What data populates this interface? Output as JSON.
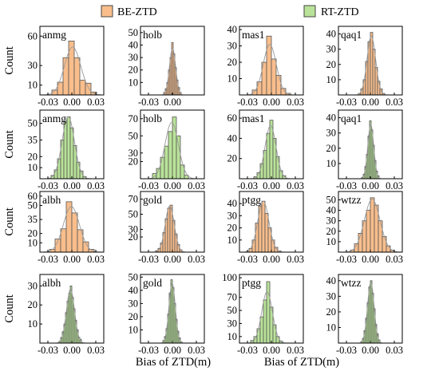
{
  "legend": [
    {
      "label": "BE-ZTD",
      "color": "#f9be8c"
    },
    {
      "label": "RT-ZTD",
      "color": "#b9e398"
    }
  ],
  "colors": {
    "be": "#f9be8c",
    "rt": "#b9e398",
    "edge": "#555555",
    "curve": "#9a9a9a"
  },
  "axes": {
    "ylabel": "Count",
    "xlabel": "Bias of ZTD(m)"
  },
  "chart_data": [
    {
      "type": "bar",
      "series": "BE-ZTD",
      "site": "anmg",
      "xlim": [
        -0.04,
        0.04
      ],
      "xticks": [
        -0.03,
        0.0,
        0.03
      ],
      "xticklabels": [
        "-0.03",
        "0.00",
        "0.03"
      ],
      "ylim": [
        0,
        70
      ],
      "yticks": [
        10,
        30,
        60
      ],
      "bin_start": -0.025,
      "bin_width": 0.007,
      "values": [
        5,
        13,
        38,
        55,
        38,
        15,
        12,
        3
      ]
    },
    {
      "type": "bar",
      "series": "BE-ZTD",
      "site": "holb",
      "xlim": [
        -0.04,
        0.04
      ],
      "xticks": [
        -0.03,
        0.0
      ],
      "xticklabels": [
        "-0.03",
        "0.00"
      ],
      "ylim": [
        0,
        55
      ],
      "yticks": [
        10,
        20,
        30,
        40,
        50
      ],
      "bin_start": -0.011,
      "bin_width": 0.002,
      "values": [
        2,
        5,
        10,
        20,
        30,
        42,
        33,
        22,
        12,
        6,
        2
      ]
    },
    {
      "type": "bar",
      "series": "BE-ZTD",
      "site": "mas1",
      "xlim": [
        -0.04,
        0.04
      ],
      "xticks": [
        -0.03,
        0.0,
        0.03
      ],
      "xticklabels": [
        "-0.03",
        "0.00",
        "0.03"
      ],
      "ylim": [
        0,
        42
      ],
      "yticks": [
        10,
        20,
        30,
        40
      ],
      "bin_start": -0.024,
      "bin_width": 0.006,
      "values": [
        3,
        8,
        20,
        36,
        22,
        12,
        4,
        1
      ]
    },
    {
      "type": "bar",
      "series": "BE-ZTD",
      "site": "qaq1",
      "xlim": [
        -0.04,
        0.04
      ],
      "xticks": [
        -0.03,
        0.0,
        0.03
      ],
      "xticklabels": [
        "-0.03",
        "0.00",
        "0.03"
      ],
      "ylim": [
        0,
        45
      ],
      "yticks": [
        10,
        20,
        30,
        40
      ],
      "bin_start": -0.015,
      "bin_width": 0.003,
      "values": [
        1,
        4,
        10,
        22,
        35,
        41,
        30,
        18,
        9,
        4,
        1
      ]
    },
    {
      "type": "bar",
      "series": "RT-ZTD",
      "site": "anmg",
      "xlim": [
        -0.04,
        0.04
      ],
      "xticks": [
        -0.03,
        0.0,
        0.03
      ],
      "xticklabels": [
        "-0.03",
        "0.00",
        "0.03"
      ],
      "ylim": [
        0,
        62
      ],
      "yticks": [
        10,
        20,
        35,
        50
      ],
      "bin_start": -0.026,
      "bin_width": 0.004,
      "values": [
        3,
        8,
        18,
        35,
        52,
        56,
        46,
        30,
        15,
        7,
        2
      ]
    },
    {
      "type": "bar",
      "series": "RT-ZTD",
      "site": "holb",
      "xlim": [
        -0.04,
        0.04
      ],
      "xticks": [
        -0.03,
        0.0,
        0.03
      ],
      "xticklabels": [
        "-0.03",
        "0.00",
        "0.03"
      ],
      "ylim": [
        0,
        80
      ],
      "yticks": [
        20,
        30,
        50,
        70
      ],
      "bin_start": -0.025,
      "bin_width": 0.005,
      "values": [
        6,
        12,
        25,
        38,
        55,
        72,
        50,
        16,
        4
      ]
    },
    {
      "type": "bar",
      "series": "RT-ZTD",
      "site": "mas1",
      "xlim": [
        -0.04,
        0.04
      ],
      "xticks": [
        -0.03,
        0.0,
        0.03
      ],
      "xticklabels": [
        "-0.03",
        "0.00",
        "0.03"
      ],
      "ylim": [
        0,
        68
      ],
      "yticks": [
        20,
        40,
        60
      ],
      "bin_start": -0.022,
      "bin_width": 0.004,
      "values": [
        2,
        6,
        15,
        28,
        45,
        58,
        40,
        22,
        8,
        3
      ]
    },
    {
      "type": "bar",
      "series": "RT-ZTD",
      "site": "qaq1",
      "xlim": [
        -0.04,
        0.04
      ],
      "xticks": [
        -0.03,
        0.0,
        0.03
      ],
      "xticklabels": [
        "-0.03",
        "0.00",
        "0.03"
      ],
      "ylim": [
        0,
        45
      ],
      "yticks": [
        10,
        20,
        30,
        40
      ],
      "bin_start": -0.011,
      "bin_width": 0.002,
      "values": [
        1,
        3,
        8,
        16,
        28,
        38,
        32,
        22,
        12,
        5,
        2
      ]
    },
    {
      "type": "bar",
      "series": "BE-ZTD",
      "site": "albh",
      "xlim": [
        -0.04,
        0.04
      ],
      "xticks": [
        -0.03,
        0.0,
        0.03
      ],
      "xticklabels": [
        "-0.03",
        "0.00",
        "0.03"
      ],
      "ylim": [
        0,
        65
      ],
      "yticks": [
        10,
        20,
        35,
        50,
        60
      ],
      "bin_start": -0.028,
      "bin_width": 0.007,
      "values": [
        3,
        14,
        25,
        54,
        42,
        24,
        11,
        3
      ]
    },
    {
      "type": "bar",
      "series": "BE-ZTD",
      "site": "gold",
      "xlim": [
        -0.04,
        0.04
      ],
      "xticks": [
        -0.03,
        0.0,
        0.03
      ],
      "xticklabels": [
        "-0.03",
        "0.00",
        "0.03"
      ],
      "ylim": [
        0,
        80
      ],
      "yticks": [
        20,
        30,
        50,
        70
      ],
      "bin_start": -0.021,
      "bin_width": 0.003,
      "values": [
        2,
        5,
        12,
        26,
        44,
        58,
        62,
        42,
        24,
        10,
        3
      ]
    },
    {
      "type": "bar",
      "series": "BE-ZTD",
      "site": "ptgg",
      "xlim": [
        -0.04,
        0.04
      ],
      "xticks": [
        -0.03,
        0.0,
        0.03
      ],
      "xticklabels": [
        "-0.03",
        "0.00",
        "0.03"
      ],
      "ylim": [
        0,
        50
      ],
      "yticks": [
        10,
        20,
        30,
        40
      ],
      "bin_start": -0.028,
      "bin_width": 0.004,
      "values": [
        3,
        10,
        24,
        38,
        42,
        32,
        20,
        10,
        4,
        1
      ]
    },
    {
      "type": "bar",
      "series": "BE-ZTD",
      "site": "wtzz",
      "xlim": [
        -0.04,
        0.04
      ],
      "xticks": [
        -0.03,
        0.0,
        0.03
      ],
      "xticklabels": [
        "-0.03",
        "0.00",
        "0.03"
      ],
      "ylim": [
        0,
        58
      ],
      "yticks": [
        10,
        20,
        30,
        40,
        50
      ],
      "bin_start": -0.025,
      "bin_width": 0.005,
      "values": [
        2,
        8,
        18,
        30,
        40,
        52,
        45,
        30,
        15,
        6,
        2
      ]
    },
    {
      "type": "bar",
      "series": "RT-ZTD",
      "site": "albh",
      "xlim": [
        -0.04,
        0.04
      ],
      "xticks": [
        -0.03,
        0.0,
        0.03
      ],
      "xticklabels": [
        "-0.03",
        "0.00",
        "0.03"
      ],
      "ylim": [
        0,
        36
      ],
      "yticks": [
        10,
        20,
        30
      ],
      "bin_start": -0.016,
      "bin_width": 0.002,
      "values": [
        1,
        3,
        6,
        10,
        16,
        22,
        26,
        30,
        24,
        18,
        12,
        7,
        3,
        2
      ]
    },
    {
      "type": "bar",
      "series": "RT-ZTD",
      "site": "gold",
      "xlim": [
        -0.04,
        0.04
      ],
      "xticks": [
        -0.03,
        0.0,
        0.03
      ],
      "xticklabels": [
        "-0.03",
        "0.00",
        "0.03"
      ],
      "ylim": [
        0,
        52
      ],
      "yticks": [
        10,
        20,
        30,
        40,
        50
      ],
      "bin_start": -0.012,
      "bin_width": 0.002,
      "values": [
        2,
        5,
        11,
        22,
        38,
        48,
        42,
        30,
        18,
        9,
        4,
        1
      ]
    },
    {
      "type": "bar",
      "series": "RT-ZTD",
      "site": "ptgg",
      "xlim": [
        -0.04,
        0.04
      ],
      "xticks": [
        -0.03,
        0.0,
        0.03
      ],
      "xticklabels": [
        "-0.03",
        "0.00",
        "0.03"
      ],
      "ylim": [
        0,
        105
      ],
      "yticks": [
        10,
        30,
        50,
        70,
        100
      ],
      "bin_start": -0.026,
      "bin_width": 0.004,
      "values": [
        4,
        10,
        22,
        40,
        66,
        94,
        55,
        28,
        10,
        3
      ]
    },
    {
      "type": "bar",
      "series": "RT-ZTD",
      "site": "wtzz",
      "xlim": [
        -0.04,
        0.04
      ],
      "xticks": [
        -0.03,
        0.0,
        0.03
      ],
      "xticklabels": [
        "-0.03",
        "0.00",
        "0.03"
      ],
      "ylim": [
        0,
        44
      ],
      "yticks": [
        10,
        20,
        30,
        40
      ],
      "bin_start": -0.012,
      "bin_width": 0.002,
      "values": [
        1,
        3,
        8,
        16,
        26,
        36,
        40,
        32,
        22,
        12,
        6,
        2
      ]
    }
  ]
}
